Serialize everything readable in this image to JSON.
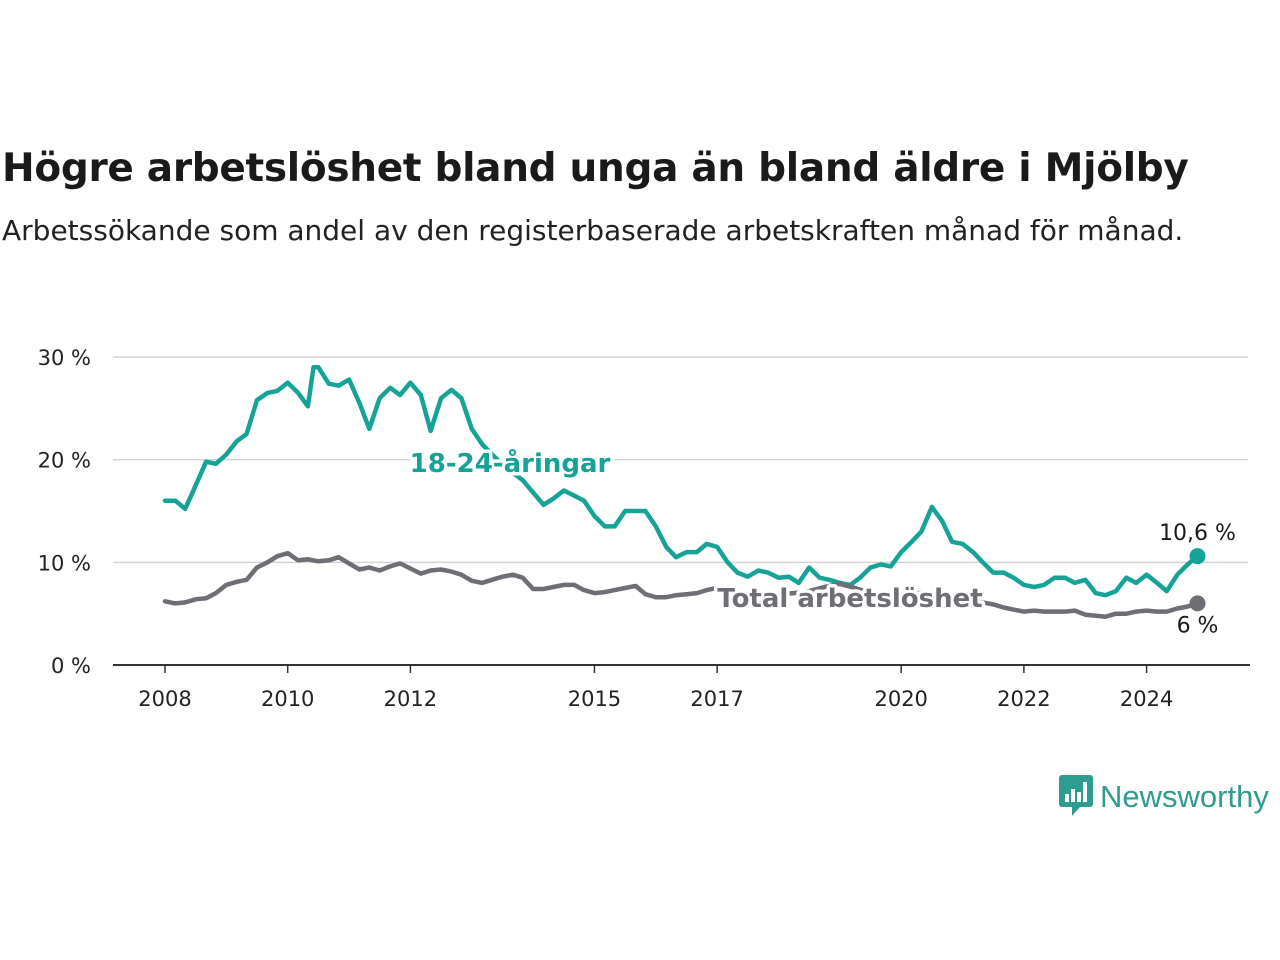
{
  "title": "Högre arbetslöshet bland unga än bland äldre i Mjölby",
  "subtitle": "Arbetssökande som andel av den registerbaserade arbetskraften månad för månad.",
  "brand": {
    "name": "Newsworthy",
    "icon": "newsworthy-logo-icon",
    "color": "#2e9c8f"
  },
  "colors": {
    "youth": "#14a396",
    "total": "#6f6e75",
    "grid": "#d4d4d4",
    "axis": "#333333"
  },
  "chart_data": {
    "type": "line",
    "title": "Högre arbetslöshet bland unga än bland äldre i Mjölby",
    "xlabel": "",
    "ylabel": "",
    "xlim": [
      2008.0,
      2025.6
    ],
    "ylim": [
      0,
      30
    ],
    "grid": true,
    "legend": "inline labels",
    "x_ticks": [
      "2008",
      "2010",
      "2012",
      "2015",
      "2017",
      "2020",
      "2022",
      "2024"
    ],
    "y_ticks": [
      "0 %",
      "10 %",
      "20 %",
      "30 %"
    ],
    "series": [
      {
        "name": "18-24-åringar",
        "end_label": "10,6 %",
        "x": [
          2008.0,
          2008.17,
          2008.33,
          2008.5,
          2008.67,
          2008.83,
          2009.0,
          2009.17,
          2009.33,
          2009.5,
          2009.67,
          2009.83,
          2010.0,
          2010.17,
          2010.33,
          2010.42,
          2010.5,
          2010.67,
          2010.83,
          2011.0,
          2011.17,
          2011.33,
          2011.5,
          2011.67,
          2011.83,
          2012.0,
          2012.17,
          2012.33,
          2012.5,
          2012.67,
          2012.83,
          2013.0,
          2013.17,
          2013.5,
          2013.83,
          2014.17,
          2014.33,
          2014.5,
          2014.67,
          2014.83,
          2015.0,
          2015.17,
          2015.33,
          2015.5,
          2015.67,
          2015.83,
          2016.0,
          2016.17,
          2016.33,
          2016.5,
          2016.67,
          2016.83,
          2017.0,
          2017.17,
          2017.33,
          2017.5,
          2017.67,
          2017.83,
          2018.0,
          2018.17,
          2018.33,
          2018.5,
          2018.67,
          2018.83,
          2019.0,
          2019.17,
          2019.33,
          2019.5,
          2019.67,
          2019.83,
          2020.0,
          2020.17,
          2020.33,
          2020.5,
          2020.67,
          2020.83,
          2021.0,
          2021.17,
          2021.33,
          2021.5,
          2021.67,
          2021.83,
          2022.0,
          2022.17,
          2022.33,
          2022.5,
          2022.67,
          2022.83,
          2023.0,
          2023.17,
          2023.33,
          2023.5,
          2023.67,
          2023.83,
          2024.0,
          2024.17,
          2024.33,
          2024.5,
          2024.67,
          2024.83
        ],
        "values": [
          16.0,
          16.0,
          15.2,
          17.5,
          19.8,
          19.6,
          20.5,
          21.8,
          22.5,
          25.8,
          26.5,
          26.7,
          27.5,
          26.5,
          25.2,
          29.0,
          29.0,
          27.4,
          27.2,
          27.8,
          25.5,
          23.0,
          26.0,
          27.0,
          26.3,
          27.5,
          26.3,
          22.8,
          26.0,
          26.8,
          26.0,
          23.0,
          21.5,
          19.5,
          18.0,
          15.6,
          16.2,
          17.0,
          16.5,
          16.0,
          14.5,
          13.5,
          13.5,
          15.0,
          15.0,
          15.0,
          13.5,
          11.5,
          10.5,
          11.0,
          11.0,
          11.8,
          11.5,
          10.0,
          9.0,
          8.6,
          9.2,
          9.0,
          8.5,
          8.6,
          8.0,
          9.5,
          8.5,
          8.3,
          8.0,
          7.8,
          8.5,
          9.5,
          9.8,
          9.6,
          11.0,
          12.0,
          13.0,
          15.4,
          14.0,
          12.0,
          11.8,
          11.0,
          10.0,
          9.0,
          9.0,
          8.5,
          7.8,
          7.6,
          7.8,
          8.5,
          8.5,
          8.0,
          8.3,
          7.0,
          6.8,
          7.2,
          8.5,
          8.0,
          8.8,
          8.0,
          7.2,
          8.8,
          9.8,
          10.6
        ]
      },
      {
        "name": "Total arbetslöshet",
        "end_label": "6 %",
        "x": [
          2008.0,
          2008.17,
          2008.33,
          2008.5,
          2008.67,
          2008.83,
          2009.0,
          2009.17,
          2009.33,
          2009.5,
          2009.67,
          2009.83,
          2010.0,
          2010.17,
          2010.33,
          2010.5,
          2010.67,
          2010.83,
          2011.0,
          2011.17,
          2011.33,
          2011.5,
          2011.67,
          2011.83,
          2012.0,
          2012.17,
          2012.33,
          2012.5,
          2012.67,
          2012.83,
          2013.0,
          2013.17,
          2013.33,
          2013.5,
          2013.67,
          2013.83,
          2014.0,
          2014.17,
          2014.33,
          2014.5,
          2014.67,
          2014.83,
          2015.0,
          2015.17,
          2015.33,
          2015.5,
          2015.67,
          2015.83,
          2016.0,
          2016.17,
          2016.33,
          2016.5,
          2016.67,
          2016.83,
          2017.0,
          2017.25,
          2017.5,
          2017.75,
          2018.0,
          2018.25,
          2018.5,
          2018.75,
          2019.0,
          2019.25,
          2019.5,
          2019.75,
          2020.0,
          2020.17,
          2020.33,
          2020.5,
          2020.67,
          2020.83,
          2021.0,
          2021.17,
          2021.33,
          2021.5,
          2021.67,
          2021.83,
          2022.0,
          2022.17,
          2022.33,
          2022.5,
          2022.67,
          2022.83,
          2023.0,
          2023.17,
          2023.33,
          2023.5,
          2023.67,
          2023.83,
          2024.0,
          2024.17,
          2024.33,
          2024.5,
          2024.67,
          2024.83
        ],
        "values": [
          6.2,
          6.0,
          6.1,
          6.4,
          6.5,
          7.0,
          7.8,
          8.1,
          8.3,
          9.5,
          10.0,
          10.6,
          10.9,
          10.2,
          10.3,
          10.1,
          10.2,
          10.5,
          9.9,
          9.3,
          9.5,
          9.2,
          9.6,
          9.9,
          9.4,
          8.9,
          9.2,
          9.3,
          9.1,
          8.8,
          8.2,
          8.0,
          8.3,
          8.6,
          8.8,
          8.5,
          7.4,
          7.4,
          7.6,
          7.8,
          7.8,
          7.3,
          7.0,
          7.1,
          7.3,
          7.5,
          7.7,
          6.9,
          6.6,
          6.6,
          6.8,
          6.9,
          7.0,
          7.3,
          7.5,
          7.2,
          7.0,
          7.0,
          6.9,
          7.0,
          7.2,
          7.6,
          7.9,
          7.5,
          7.0,
          6.8,
          6.7,
          6.6,
          7.1,
          7.1,
          7.0,
          6.8,
          6.6,
          6.3,
          6.1,
          5.9,
          5.6,
          5.4,
          5.2,
          5.3,
          5.2,
          5.2,
          5.2,
          5.3,
          4.9,
          4.8,
          4.7,
          5.0,
          5.0,
          5.2,
          5.3,
          5.2,
          5.2,
          5.5,
          5.7,
          6.0
        ]
      }
    ]
  }
}
